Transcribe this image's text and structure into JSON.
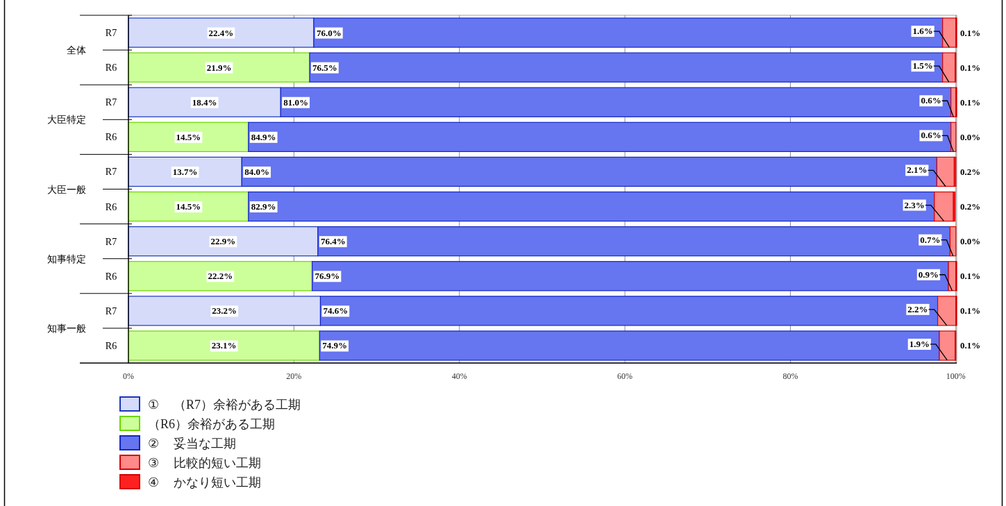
{
  "chart_data": {
    "type": "bar",
    "orientation": "horizontal",
    "stacked": true,
    "categories": [
      "R7",
      "R6",
      "R7",
      "R6",
      "R7",
      "R6",
      "R7",
      "R6",
      "R7",
      "R6"
    ],
    "annotations": [
      "全体",
      "大臣特定",
      "大臣一般",
      "知事特定",
      "知事一般"
    ],
    "series": [
      {
        "name": "① （R7）余裕がある工期",
        "color": "#d5dbf9",
        "values": [
          22.4,
          null,
          18.4,
          null,
          13.7,
          null,
          22.9,
          null,
          23.2,
          null
        ],
        "value_labels": [
          "22.4%",
          null,
          "18.4%",
          null,
          "13.7%",
          null,
          "22.9%",
          null,
          "23.2%",
          null
        ]
      },
      {
        "name": "（R6）余裕がある工期",
        "color": "#ccff99",
        "values": [
          null,
          21.9,
          null,
          14.5,
          null,
          14.5,
          null,
          22.2,
          null,
          23.1
        ],
        "value_labels": [
          null,
          "21.9%",
          null,
          "14.5%",
          null,
          "14.5%",
          null,
          "22.2%",
          null,
          "23.1%"
        ]
      },
      {
        "name": "② 妥当な工期",
        "color": "#6675f0",
        "values": [
          76.0,
          76.5,
          81.0,
          84.9,
          84.0,
          82.9,
          76.4,
          76.9,
          74.6,
          74.9
        ],
        "value_labels": [
          "76.0%",
          "76.5%",
          "81.0%",
          "84.9%",
          "84.0%",
          "82.9%",
          "76.4%",
          "76.9%",
          "74.6%",
          "74.9%"
        ]
      },
      {
        "name": "③ 比較的短い工期",
        "color": "#ff8a8a",
        "values": [
          1.6,
          1.5,
          0.6,
          0.6,
          2.1,
          2.3,
          0.7,
          0.9,
          2.2,
          1.9
        ],
        "value_labels": [
          "1.6%",
          "1.5%",
          "0.6%",
          "0.6%",
          "2.1%",
          "2.3%",
          "0.7%",
          "0.9%",
          "2.2%",
          "1.9%"
        ]
      },
      {
        "name": "④ かなり短い工期",
        "color": "#ff2020",
        "values": [
          0.1,
          0.1,
          0.1,
          0.0,
          0.2,
          0.2,
          0.0,
          0.1,
          0.1,
          0.1
        ],
        "value_labels": [
          "0.1%",
          "0.1%",
          "0.1%",
          "0.0%",
          "0.2%",
          "0.2%",
          "0.0%",
          "0.1%",
          "0.1%",
          "0.1%"
        ]
      }
    ],
    "xlim": [
      0,
      100.1
    ],
    "xticks": [
      {
        "value": 0,
        "label": "0%"
      },
      {
        "value": 20,
        "label": "20%"
      },
      {
        "value": 40,
        "label": "40%"
      },
      {
        "value": 60,
        "label": "60%"
      },
      {
        "value": 80,
        "label": "80%"
      },
      {
        "value": 100,
        "label": "100%"
      }
    ],
    "grid": "x",
    "legend": "bottom"
  }
}
